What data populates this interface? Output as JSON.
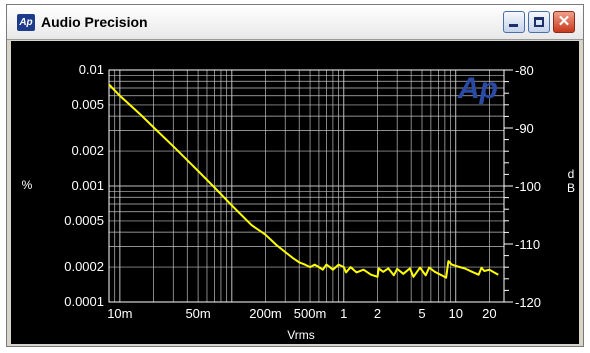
{
  "window": {
    "title": "Audio Precision",
    "icon_label": "Ap",
    "buttons": {
      "minimize_icon": "minimize-icon",
      "maximize_icon": "maximize-icon",
      "close_icon": "close-icon"
    },
    "close_glyph": "✕"
  },
  "logo": {
    "text": "Ap",
    "color": "#2a4aa8"
  },
  "colors": {
    "trace": "#ffff00",
    "plot_background": "#000000",
    "grid": "#bfbfbf",
    "text": "#ffffff"
  },
  "chart_data": {
    "type": "line",
    "title": "",
    "xlabel": "Vrms",
    "ylabel_left": "%",
    "ylabel_right": "dB",
    "x_scale": "log",
    "y_scale": "log",
    "xlim": [
      0.008,
      27
    ],
    "ylim_left": [
      0.0001,
      0.01
    ],
    "ylim_right": [
      -120,
      -80
    ],
    "grid": true,
    "x_ticks": [
      {
        "value": 0.01,
        "label": "10m"
      },
      {
        "value": 0.05,
        "label": "50m"
      },
      {
        "value": 0.2,
        "label": "200m"
      },
      {
        "value": 0.5,
        "label": "500m"
      },
      {
        "value": 1,
        "label": "1"
      },
      {
        "value": 2,
        "label": "2"
      },
      {
        "value": 5,
        "label": "5"
      },
      {
        "value": 10,
        "label": "10"
      },
      {
        "value": 20,
        "label": "20"
      }
    ],
    "y_ticks_left": [
      {
        "value": 0.01,
        "label": "0.01"
      },
      {
        "value": 0.005,
        "label": "0.005"
      },
      {
        "value": 0.002,
        "label": "0.002"
      },
      {
        "value": 0.001,
        "label": "0.001"
      },
      {
        "value": 0.0005,
        "label": "0.0005"
      },
      {
        "value": 0.0002,
        "label": "0.0002"
      },
      {
        "value": 0.0001,
        "label": "0.0001"
      }
    ],
    "y_ticks_right": [
      {
        "value": -80,
        "label": "-80"
      },
      {
        "value": -90,
        "label": "-90"
      },
      {
        "value": -100,
        "label": "-100"
      },
      {
        "value": -110,
        "label": "-110"
      },
      {
        "value": -120,
        "label": "-120"
      }
    ],
    "series": [
      {
        "color": "#ffff00",
        "x": [
          0.008,
          0.01,
          0.015,
          0.02,
          0.03,
          0.05,
          0.07,
          0.1,
          0.15,
          0.2,
          0.25,
          0.3,
          0.35,
          0.4,
          0.45,
          0.5,
          0.55,
          0.6,
          0.65,
          0.7,
          0.75,
          0.8,
          0.9,
          1.0,
          1.05,
          1.15,
          1.3,
          1.5,
          1.75,
          2.0,
          2.05,
          2.25,
          2.5,
          2.8,
          3.0,
          3.4,
          3.9,
          4.2,
          4.8,
          5.4,
          5.8,
          6.5,
          7.5,
          8.2,
          8.6,
          9.2,
          10.5,
          12,
          14,
          16,
          17,
          18,
          20,
          22,
          24
        ],
        "y": [
          0.0075,
          0.006,
          0.0042,
          0.0032,
          0.0022,
          0.00135,
          0.00097,
          0.00068,
          0.00046,
          0.00038,
          0.00031,
          0.00027,
          0.00024,
          0.00022,
          0.00021,
          0.0002,
          0.00021,
          0.0002,
          0.00019,
          0.00021,
          0.0002,
          0.00019,
          0.00021,
          0.0002,
          0.00018,
          0.0002,
          0.00018,
          0.00019,
          0.000172,
          0.000165,
          0.000195,
          0.000182,
          0.000195,
          0.00017,
          0.000193,
          0.000175,
          0.000195,
          0.000165,
          0.000198,
          0.00017,
          0.000198,
          0.000182,
          0.00017,
          0.000162,
          0.000225,
          0.00021,
          0.000202,
          0.000195,
          0.000182,
          0.000172,
          0.000197,
          0.000185,
          0.00019,
          0.00018,
          0.000172
        ]
      }
    ]
  }
}
